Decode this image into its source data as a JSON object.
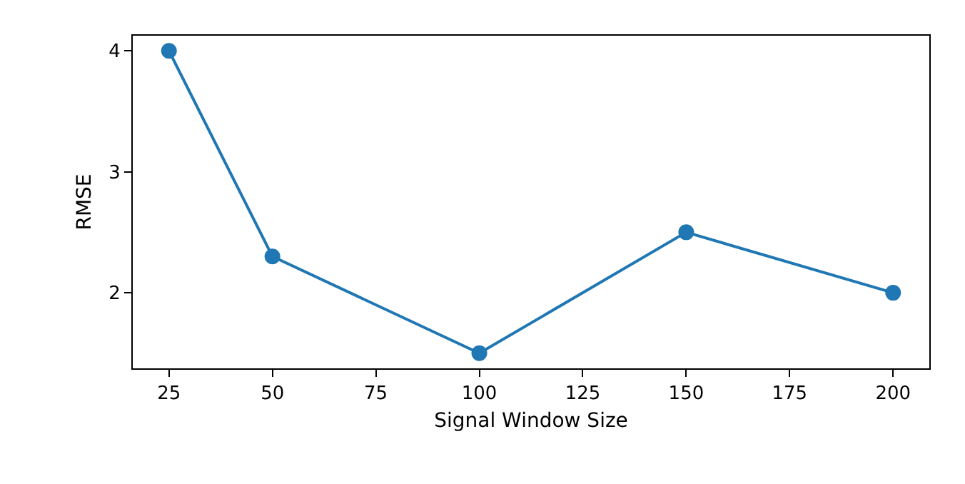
{
  "chart_data": {
    "type": "line",
    "xlabel": "Signal Window Size",
    "ylabel": "RMSE",
    "x": [
      25,
      50,
      100,
      150,
      200
    ],
    "series": [
      {
        "color": "#1f77b4",
        "values": [
          4.0,
          2.3,
          1.5,
          2.5,
          2.0
        ]
      }
    ],
    "xlim": [
      16.25,
      208.75
    ],
    "xticks": [
      25,
      50,
      75,
      100,
      125,
      150,
      175,
      200
    ],
    "ylim": [
      1.375,
      4.125
    ],
    "yticks": [
      2,
      3,
      4
    ],
    "marker": "circle",
    "line_style": "solid"
  }
}
